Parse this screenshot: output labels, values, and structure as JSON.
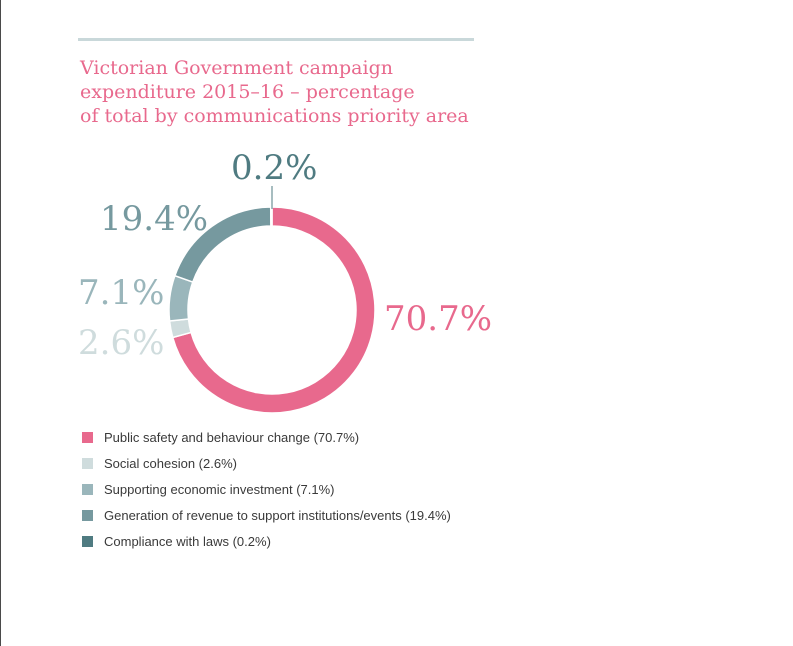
{
  "title_lines": [
    "Victorian Government campaign",
    "expenditure 2015–16 – percentage",
    "of total by communications priority area"
  ],
  "chart_data": {
    "type": "pie",
    "donut": true,
    "title": "Victorian Government campaign expenditure 2015–16 – percentage of total by communications priority area",
    "series": [
      {
        "name": "Public safety and behaviour change",
        "value": 70.7,
        "label": "70.7%",
        "legend": "Public safety and behaviour change (70.7%)",
        "color": "#e8698d",
        "label_color": "#e8698d"
      },
      {
        "name": "Social cohesion",
        "value": 2.6,
        "label": "2.6%",
        "legend": "Social cohesion (2.6%)",
        "color": "#cfdcdd",
        "label_color": "#cfdcdd"
      },
      {
        "name": "Supporting economic investment",
        "value": 7.1,
        "label": "7.1%",
        "legend": "Supporting economic investment (7.1%)",
        "color": "#9ab6bb",
        "label_color": "#9ab6bb"
      },
      {
        "name": "Generation of revenue to support institutions/events",
        "value": 19.4,
        "label": "19.4%",
        "legend": "Generation of revenue to support institutions/events (19.4%)",
        "color": "#76999f",
        "label_color": "#76999f"
      },
      {
        "name": "Compliance with laws",
        "value": 0.2,
        "label": "0.2%",
        "legend": "Compliance with laws (0.2%)",
        "color": "#4f7b81",
        "label_color": "#4f7b81"
      }
    ],
    "legend_position": "bottom-left"
  }
}
